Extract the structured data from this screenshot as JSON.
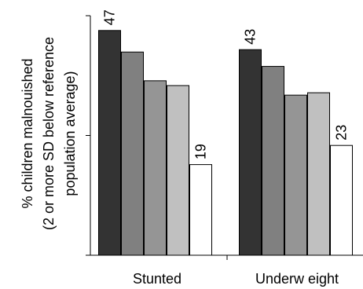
{
  "chart_data": {
    "type": "bar",
    "title": "",
    "xlabel": "",
    "ylabel_lines": [
      "% children malnouished",
      "(2 or more SD below reference",
      "population average)"
    ],
    "categories": [
      "Stunted",
      "Underw eight"
    ],
    "ylim": [
      0,
      50
    ],
    "legend": "none",
    "grid": false,
    "series": [
      {
        "color": "#333333",
        "values": [
          47,
          43
        ]
      },
      {
        "color": "#808080",
        "values": [
          42.5,
          39.5
        ]
      },
      {
        "color": "#959595",
        "values": [
          36.5,
          33.5
        ]
      },
      {
        "color": "#c0c0c0",
        "values": [
          35.5,
          34
        ]
      },
      {
        "color": "#ffffff",
        "values": [
          19,
          23
        ]
      }
    ],
    "data_labels": [
      {
        "category_index": 0,
        "series_index": 0,
        "text": "47"
      },
      {
        "category_index": 0,
        "series_index": 4,
        "text": "19"
      },
      {
        "category_index": 1,
        "series_index": 0,
        "text": "43"
      },
      {
        "category_index": 1,
        "series_index": 4,
        "text": "23"
      }
    ]
  }
}
